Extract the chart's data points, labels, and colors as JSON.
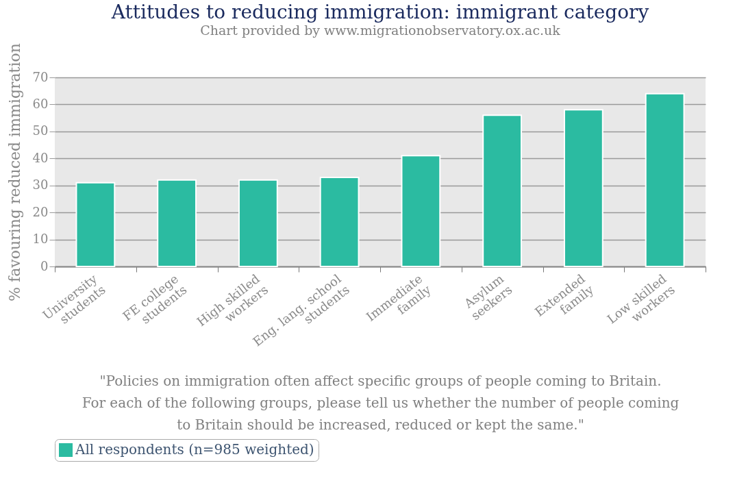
{
  "chart_data": {
    "type": "bar",
    "title": "Attitudes to reducing immigration: immigrant category",
    "subtitle": "Chart provided by www.migrationobservatory.ox.ac.uk",
    "ylabel": "% favouring reduced immigration",
    "categories": [
      "University\nstudents",
      "FE college\nstudents",
      "High skilled\nworkers",
      "Eng. lang. school\nstudents",
      "Immediate\nfamily",
      "Asylum\nseekers",
      "Extended\nfamily",
      "Low skilled\nworkers"
    ],
    "series": [
      {
        "name": "All respondents (n=985 weighted)",
        "color": "#2bbba1",
        "values": [
          31,
          32,
          32,
          33,
          41,
          56,
          58,
          64
        ]
      }
    ],
    "ylim": [
      0,
      70
    ],
    "yticks": [
      0,
      10,
      20,
      30,
      40,
      50,
      60,
      70
    ],
    "grid": "y",
    "legend": "bottom",
    "annotations": [
      "\"Policies on immigration often affect specific groups of people coming to Britain. For each of the following groups, please tell us whether the number of people coming to Britain should be increased, reduced or kept the same.\""
    ]
  }
}
